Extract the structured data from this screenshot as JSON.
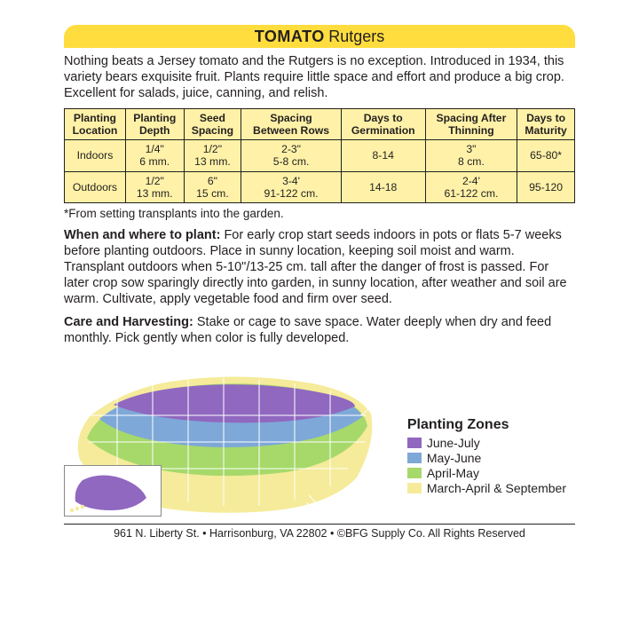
{
  "header": {
    "name_bold": "TOMATO",
    "name_reg": "Rutgers"
  },
  "intro": "Nothing beats a Jersey tomato and the Rutgers is no exception.  Introduced in 1934, this variety bears exquisite fruit. Plants require little space and effort and produce a big crop. Excellent for salads, juice, canning, and relish.",
  "table": {
    "headers": [
      "Planting\nLocation",
      "Planting\nDepth",
      "Seed\nSpacing",
      "Spacing\nBetween Rows",
      "Days to\nGermination",
      "Spacing After\nThinning",
      "Days to\nMaturity"
    ],
    "rows": [
      [
        "Indoors",
        "1/4\"\n6 mm.",
        "1/2\"\n13 mm.",
        "2-3\"\n5-8 cm.",
        "8-14",
        "3\"\n8 cm.",
        "65-80*"
      ],
      [
        "Outdoors",
        "1/2\"\n13 mm.",
        "6\"\n15 cm.",
        "3-4'\n91-122 cm.",
        "14-18",
        "2-4'\n61-122 cm.",
        "95-120"
      ]
    ]
  },
  "footnote": "*From setting transplants into the garden.",
  "sections": [
    {
      "title": "When and where to plant:",
      "body": " For early crop start seeds indoors in pots or flats 5-7 weeks before planting outdoors. Place in sunny location, keeping soil moist and warm. Transplant outdoors when 5-10\"/13-25 cm. tall after the danger of frost is passed. For later crop sow sparingly directly into garden, in sunny location, after weather and soil are warm. Cultivate, apply vegetable food and firm over seed."
    },
    {
      "title": "Care and Harvesting:",
      "body": " Stake or cage to save space. Water deeply when dry and feed monthly. Pick gently when color is fully developed."
    }
  ],
  "legend": {
    "title": "Planting Zones",
    "items": [
      {
        "label": "June-July",
        "color": "#9068c0"
      },
      {
        "label": "May-June",
        "color": "#7ea8d8"
      },
      {
        "label": "April-May",
        "color": "#a6d96a"
      },
      {
        "label": "March-April & September",
        "color": "#f5eb9a"
      }
    ]
  },
  "map": {
    "colors": {
      "purple": "#9068c0",
      "blue": "#7ea8d8",
      "green": "#a6d96a",
      "yellow": "#f5eb9a",
      "outline": "#ffffff"
    }
  },
  "footer": "961 N. Liberty St. • Harrisonburg, VA 22802 • ©BFG Supply Co. All Rights Reserved"
}
